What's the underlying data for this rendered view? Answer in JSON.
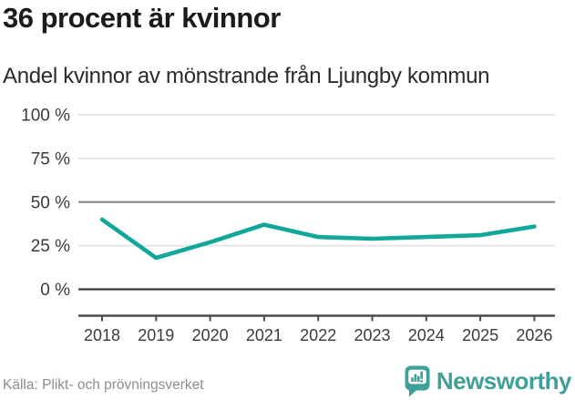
{
  "header": {
    "title": "36 procent är kvinnor",
    "subtitle": "Andel kvinnor av mönstrande från Ljungby kommun"
  },
  "footer": {
    "source": "Källa: Plikt- och prövningsverket",
    "brand": "Newsworthy",
    "brand_icon": "newsworthy-speech-bubble-bar-chart-icon"
  },
  "colors": {
    "line": "#12a79b",
    "grid_light": "#e3e3e3",
    "grid_mid": "#8b8b8b",
    "grid_zero": "#3c3c3c",
    "axis": "#4b4b4b",
    "tick_text": "#3b3b3b",
    "title_text": "#191c1b",
    "subtitle_text": "#2a2a2a",
    "source_text": "#8d8d8d",
    "brand": "#3fa09a"
  },
  "chart_data": {
    "type": "line",
    "title": "36 procent är kvinnor",
    "subtitle": "Andel kvinnor av mönstrande från Ljungby kommun",
    "x": [
      2018,
      2019,
      2020,
      2021,
      2022,
      2023,
      2024,
      2025,
      2026
    ],
    "series": [
      {
        "name": "Andel kvinnor av mönstrande från Ljungby kommun",
        "values": [
          40,
          18,
          27,
          37,
          30,
          29,
          30,
          31,
          36
        ]
      }
    ],
    "unit": "%",
    "yticks": [
      0,
      25,
      50,
      75,
      100
    ],
    "ytick_format": "{v} %",
    "ylim": [
      0,
      100
    ],
    "grid": true,
    "legend": false,
    "emphasized_ytick": 50,
    "baseline_ytick": 0
  }
}
